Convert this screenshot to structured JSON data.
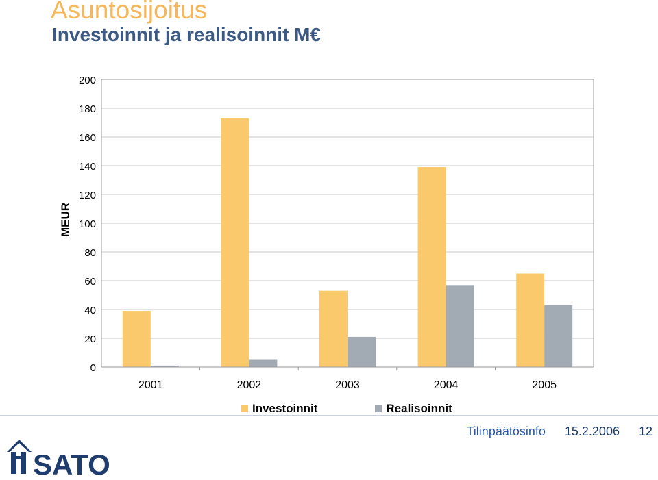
{
  "slide": {
    "title": "Asuntosijoitus",
    "subtitle": "Investoinnit ja realisoinnit M€"
  },
  "chart_data": {
    "type": "bar",
    "categories": [
      "2001",
      "2002",
      "2003",
      "2004",
      "2005"
    ],
    "series": [
      {
        "name": "Investoinnit",
        "values": [
          39,
          173,
          53,
          139,
          65
        ],
        "color": "#f9c96b"
      },
      {
        "name": "Realisoinnit",
        "values": [
          1,
          5,
          21,
          57,
          43
        ],
        "color": "#a2aab3"
      }
    ],
    "ylabel": "MEUR",
    "ylim": [
      0,
      200
    ],
    "yticks": [
      0,
      20,
      40,
      60,
      80,
      100,
      120,
      140,
      160,
      180,
      200
    ],
    "grid": true,
    "legend_position": "bottom"
  },
  "footer": {
    "name": "Tilinpäätösinfo",
    "date": "15.2.2006",
    "page": "12"
  },
  "logo": {
    "text": "SATO",
    "color": "#1f3c6e"
  }
}
